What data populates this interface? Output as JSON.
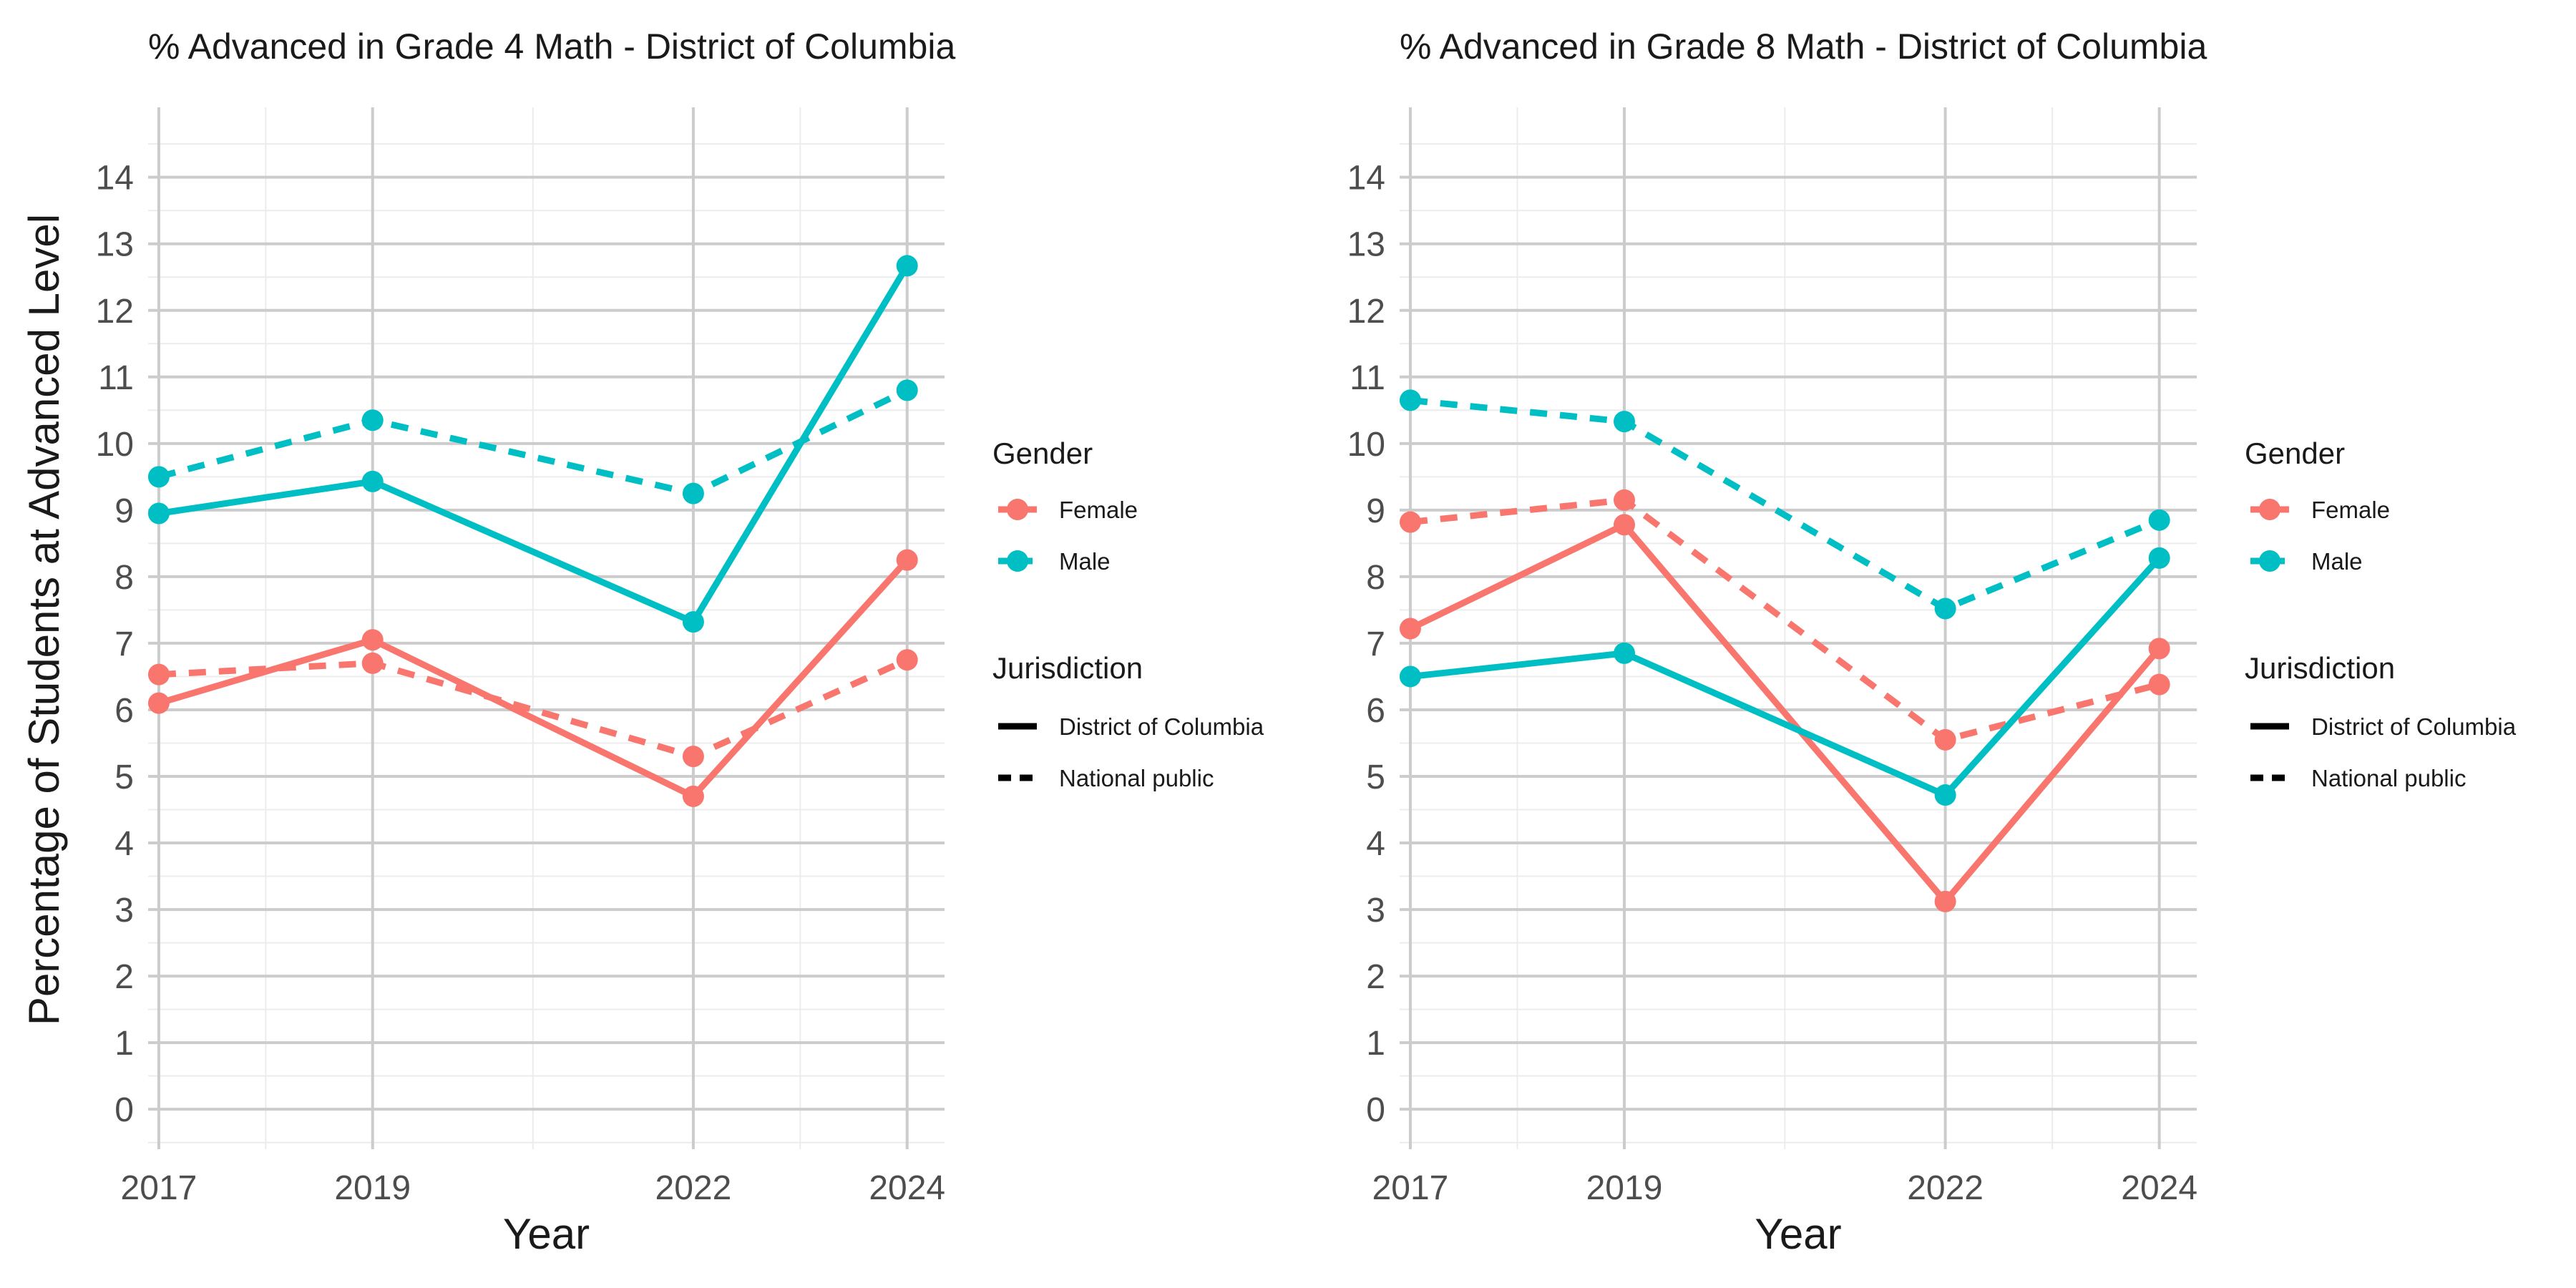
{
  "figure": {
    "ylabel": "Percentage of Students at Advanced Level",
    "xlabel": "Year"
  },
  "legend": {
    "gender_title": "Gender",
    "gender_items": [
      {
        "label": "Female",
        "color": "#F8766D"
      },
      {
        "label": "Male",
        "color": "#00BFC4"
      }
    ],
    "jurisdiction_title": "Jurisdiction",
    "jurisdiction_items": [
      {
        "label": "District of Columbia",
        "linetype": "solid"
      },
      {
        "label": "National public",
        "linetype": "dashed"
      }
    ]
  },
  "chart_data": [
    {
      "type": "line",
      "title": "% Advanced in Grade 4 Math - District of Columbia",
      "xlabel": "Year",
      "ylabel": "Percentage of Students at Advanced Level",
      "x": [
        2017,
        2019,
        2022,
        2024
      ],
      "xlim": [
        2016.9,
        2024.35
      ],
      "ylim": [
        -0.6,
        15.05
      ],
      "yticks": [
        0,
        1,
        2,
        3,
        4,
        5,
        6,
        7,
        8,
        9,
        10,
        11,
        12,
        13,
        14
      ],
      "grid": true,
      "legend_position": "right",
      "series": [
        {
          "name": "Female",
          "jurisdiction": "District of Columbia",
          "color": "#F8766D",
          "linetype": "solid",
          "values": [
            6.1,
            7.05,
            4.7,
            8.25
          ]
        },
        {
          "name": "Female",
          "jurisdiction": "National public",
          "color": "#F8766D",
          "linetype": "dashed",
          "values": [
            6.53,
            6.7,
            5.3,
            6.75
          ]
        },
        {
          "name": "Male",
          "jurisdiction": "District of Columbia",
          "color": "#00BFC4",
          "linetype": "solid",
          "values": [
            8.95,
            9.43,
            7.32,
            12.67
          ]
        },
        {
          "name": "Male",
          "jurisdiction": "National public",
          "color": "#00BFC4",
          "linetype": "dashed",
          "values": [
            9.5,
            10.35,
            9.25,
            10.8
          ]
        }
      ]
    },
    {
      "type": "line",
      "title": "% Advanced in Grade 8 Math - District of Columbia",
      "xlabel": "Year",
      "ylabel": "",
      "x": [
        2017,
        2019,
        2022,
        2024
      ],
      "xlim": [
        2016.9,
        2024.35
      ],
      "ylim": [
        -0.6,
        15.05
      ],
      "yticks": [
        0,
        1,
        2,
        3,
        4,
        5,
        6,
        7,
        8,
        9,
        10,
        11,
        12,
        13,
        14
      ],
      "grid": true,
      "legend_position": "right",
      "series": [
        {
          "name": "Female",
          "jurisdiction": "District of Columbia",
          "color": "#F8766D",
          "linetype": "solid",
          "values": [
            7.22,
            8.78,
            3.12,
            6.92
          ]
        },
        {
          "name": "Female",
          "jurisdiction": "National public",
          "color": "#F8766D",
          "linetype": "dashed",
          "values": [
            8.82,
            9.15,
            5.55,
            6.38
          ]
        },
        {
          "name": "Male",
          "jurisdiction": "District of Columbia",
          "color": "#00BFC4",
          "linetype": "solid",
          "values": [
            6.5,
            6.85,
            4.72,
            8.28
          ]
        },
        {
          "name": "Male",
          "jurisdiction": "National public",
          "color": "#00BFC4",
          "linetype": "dashed",
          "values": [
            10.65,
            10.33,
            7.52,
            8.85
          ]
        }
      ]
    }
  ]
}
